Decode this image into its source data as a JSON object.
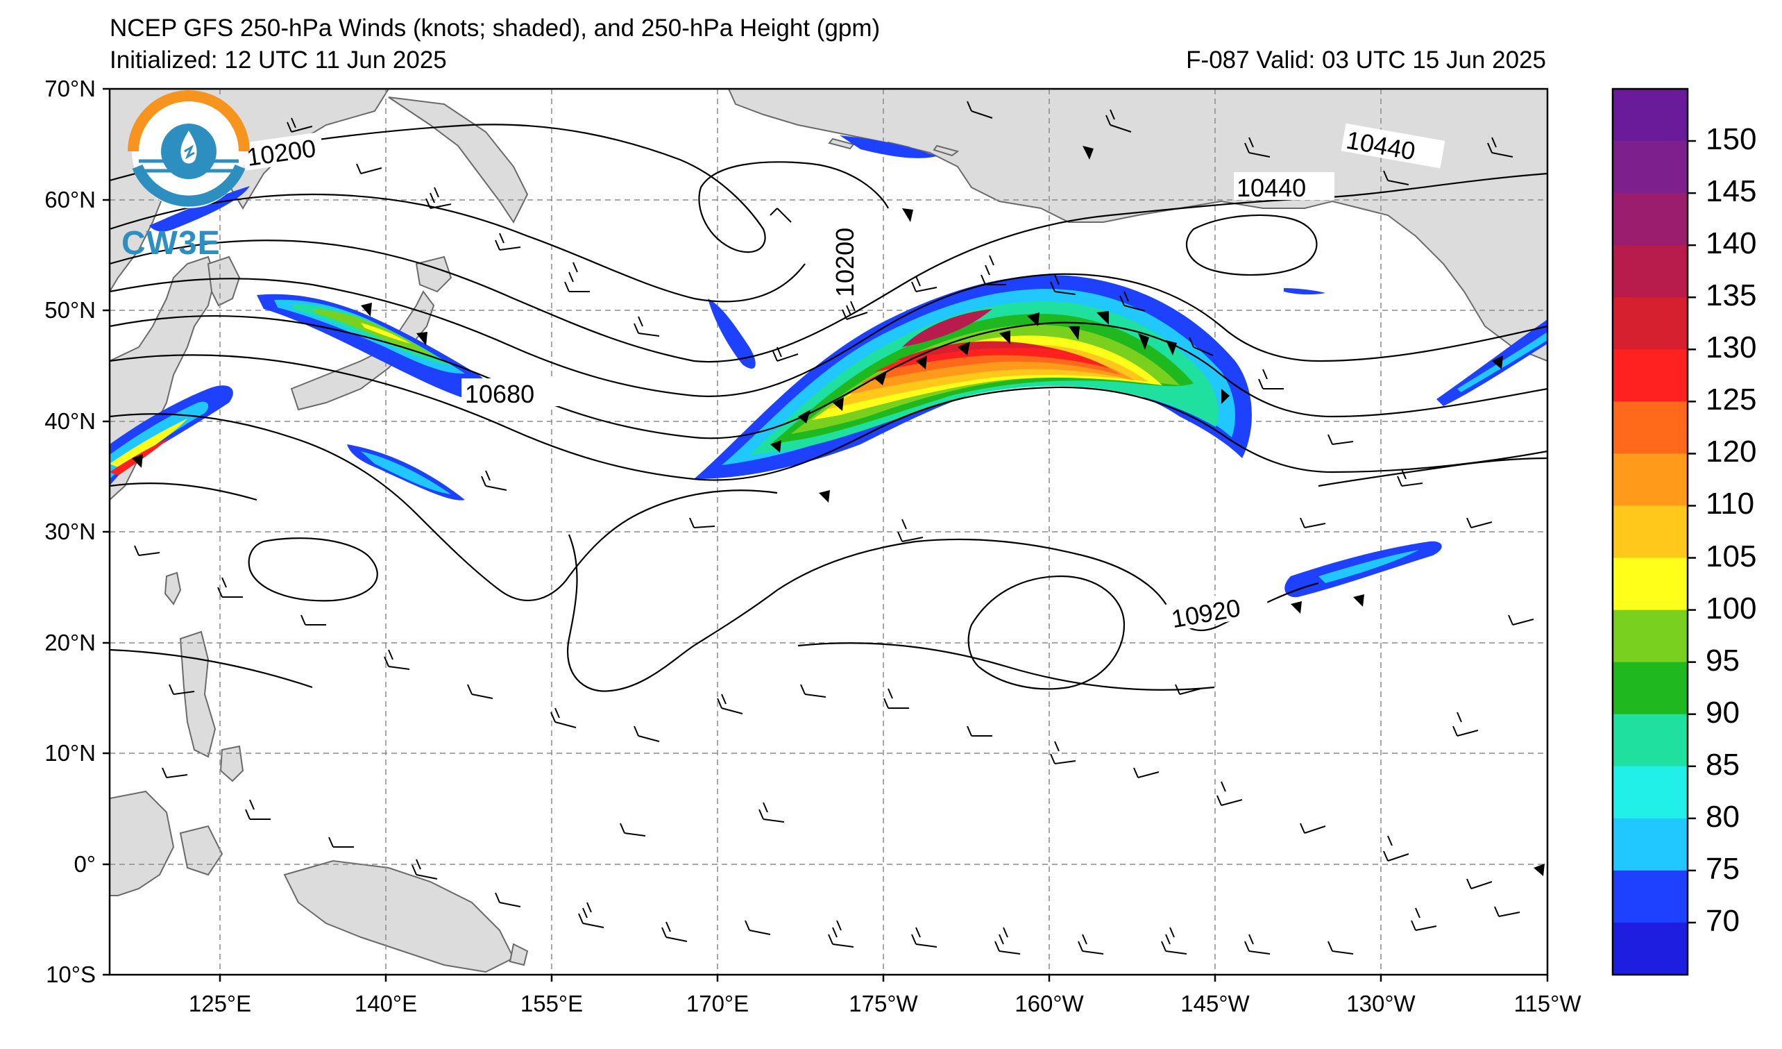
{
  "header": {
    "title": "NCEP GFS 250-hPa Winds (knots; shaded), and 250-hPa Height (gpm)",
    "initialized": "Initialized: 12 UTC 11 Jun 2025",
    "valid": "F-087  Valid: 03 UTC 15 Jun 2025"
  },
  "logo": {
    "text": "CW3E"
  },
  "axes": {
    "lat_labels": [
      "70°N",
      "60°N",
      "50°N",
      "40°N",
      "30°N",
      "20°N",
      "10°N",
      "0°",
      "10°S"
    ],
    "lon_labels": [
      "125°E",
      "140°E",
      "155°E",
      "170°E",
      "175°W",
      "160°W",
      "145°W",
      "130°W",
      "115°W"
    ]
  },
  "contour_labels": [
    "10200",
    "10440",
    "10440",
    "10200",
    "10680",
    "10920"
  ],
  "colorbar": {
    "labels": [
      "150",
      "145",
      "140",
      "135",
      "130",
      "125",
      "120",
      "110",
      "105",
      "100",
      "95",
      "90",
      "85",
      "80",
      "75",
      "70"
    ],
    "colors": [
      "#6a1b9a",
      "#7d1f8c",
      "#9a1d6e",
      "#b71c4c",
      "#d62030",
      "#ff2020",
      "#ff6a1a",
      "#ff9a1a",
      "#ffc81a",
      "#ffff1a",
      "#7ad01e",
      "#1fb81f",
      "#20e0a0",
      "#20f0e8",
      "#20c8ff",
      "#1e40ff",
      "#1e1ee0"
    ]
  },
  "map_data": {
    "projection": "equirectangular",
    "lon_range": [
      "115°E",
      "115°W"
    ],
    "lat_range": [
      "10°S",
      "70°N"
    ],
    "gridlines": true,
    "jet_max_knots": 150
  }
}
